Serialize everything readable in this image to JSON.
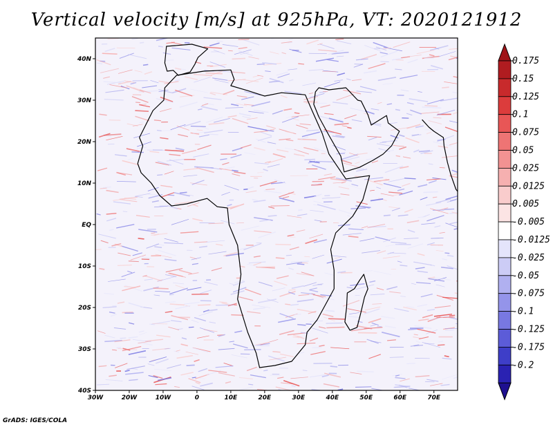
{
  "title": "Vertical velocity [m/s] at 925hPa, VT: 2020121912",
  "credit": "GrADS: IGES/COLA",
  "map": {
    "lon_range": [
      -30,
      77
    ],
    "lat_range": [
      -40,
      45
    ],
    "lon_ticks": [
      {
        "value": -30,
        "label": "30W"
      },
      {
        "value": -20,
        "label": "20W"
      },
      {
        "value": -10,
        "label": "10W"
      },
      {
        "value": 0,
        "label": "0"
      },
      {
        "value": 10,
        "label": "10E"
      },
      {
        "value": 20,
        "label": "20E"
      },
      {
        "value": 30,
        "label": "30E"
      },
      {
        "value": 40,
        "label": "40E"
      },
      {
        "value": 50,
        "label": "50E"
      },
      {
        "value": 60,
        "label": "60E"
      },
      {
        "value": 70,
        "label": "70E"
      }
    ],
    "lat_ticks": [
      {
        "value": 40,
        "label": "40N"
      },
      {
        "value": 30,
        "label": "30N"
      },
      {
        "value": 20,
        "label": "20N"
      },
      {
        "value": 10,
        "label": "10N"
      },
      {
        "value": 0,
        "label": "EQ"
      },
      {
        "value": -10,
        "label": "10S"
      },
      {
        "value": -20,
        "label": "20S"
      },
      {
        "value": -30,
        "label": "30S"
      },
      {
        "value": -40,
        "label": "40S"
      }
    ],
    "africa_outline": [
      [
        -6,
        36
      ],
      [
        2,
        37
      ],
      [
        10,
        37.3
      ],
      [
        11,
        35
      ],
      [
        10,
        33.5
      ],
      [
        15,
        32.3
      ],
      [
        20,
        31
      ],
      [
        25,
        31.8
      ],
      [
        32,
        31.3
      ],
      [
        34,
        27.5
      ],
      [
        37,
        22
      ],
      [
        39,
        17
      ],
      [
        42.5,
        12.8
      ],
      [
        44,
        11
      ],
      [
        51,
        11.8
      ],
      [
        49,
        6
      ],
      [
        46,
        2
      ],
      [
        41,
        -2
      ],
      [
        39.5,
        -6
      ],
      [
        40.5,
        -11
      ],
      [
        40.5,
        -15.5
      ],
      [
        35.5,
        -23
      ],
      [
        32.5,
        -26
      ],
      [
        32,
        -29
      ],
      [
        28,
        -33
      ],
      [
        23,
        -34
      ],
      [
        18.5,
        -34.5
      ],
      [
        17.5,
        -31
      ],
      [
        15,
        -26
      ],
      [
        12,
        -18
      ],
      [
        13,
        -12
      ],
      [
        12,
        -5
      ],
      [
        9.5,
        0
      ],
      [
        9,
        4
      ],
      [
        6,
        4.3
      ],
      [
        3,
        6.3
      ],
      [
        -3,
        5
      ],
      [
        -7.5,
        4.5
      ],
      [
        -11,
        7
      ],
      [
        -13.5,
        10
      ],
      [
        -16.5,
        12.5
      ],
      [
        -17.5,
        14.7
      ],
      [
        -16,
        19
      ],
      [
        -17,
        21
      ],
      [
        -13,
        27.5
      ],
      [
        -9.8,
        30
      ],
      [
        -9.5,
        33
      ],
      [
        -6,
        36
      ]
    ],
    "arabia_outline": [
      [
        34.5,
        29
      ],
      [
        36,
        26
      ],
      [
        39,
        21.5
      ],
      [
        42.5,
        16.5
      ],
      [
        43.5,
        12.7
      ],
      [
        48,
        13.8
      ],
      [
        52,
        15.5
      ],
      [
        55,
        17
      ],
      [
        57.5,
        19
      ],
      [
        59.8,
        22.5
      ],
      [
        56.5,
        24.5
      ],
      [
        56,
        26.3
      ],
      [
        51.5,
        24
      ],
      [
        50.5,
        26.5
      ],
      [
        48.5,
        29.8
      ],
      [
        47.5,
        30
      ],
      [
        44,
        33
      ],
      [
        39,
        32.5
      ],
      [
        36,
        33
      ],
      [
        35,
        32
      ],
      [
        34.5,
        29
      ]
    ],
    "iberia_outline": [
      [
        -9,
        43
      ],
      [
        -1.5,
        43.5
      ],
      [
        3.2,
        42.4
      ],
      [
        0.3,
        40.3
      ],
      [
        -0.6,
        38.7
      ],
      [
        -2,
        36.8
      ],
      [
        -5.5,
        36
      ],
      [
        -7,
        37.2
      ],
      [
        -8.8,
        37
      ],
      [
        -9.5,
        39
      ],
      [
        -9,
        43
      ]
    ],
    "madagascar_outline": [
      [
        49.3,
        -12
      ],
      [
        50.5,
        -15.5
      ],
      [
        49.5,
        -17.5
      ],
      [
        48.5,
        -21
      ],
      [
        47.3,
        -24.8
      ],
      [
        45.2,
        -25.5
      ],
      [
        43.7,
        -23.5
      ],
      [
        44.2,
        -20
      ],
      [
        44.4,
        -16.5
      ],
      [
        46.5,
        -15.5
      ],
      [
        48,
        -13.5
      ],
      [
        49.3,
        -12
      ]
    ],
    "india_outline": [
      [
        66.5,
        25.3
      ],
      [
        68.5,
        23.5
      ],
      [
        70,
        22.5
      ],
      [
        72.8,
        21
      ],
      [
        73,
        19
      ],
      [
        74,
        15
      ],
      [
        75,
        12
      ],
      [
        76.5,
        8.5
      ],
      [
        77,
        8
      ]
    ]
  },
  "colorbar": {
    "entries": [
      {
        "color": "#b01c20",
        "label": "0.175"
      },
      {
        "color": "#c82a2c",
        "label": "0.15"
      },
      {
        "color": "#dc3c3c",
        "label": "0.125"
      },
      {
        "color": "#e85656",
        "label": "0.1"
      },
      {
        "color": "#ee7474",
        "label": "0.075"
      },
      {
        "color": "#f29292",
        "label": "0.05"
      },
      {
        "color": "#f6b0b0",
        "label": "0.025"
      },
      {
        "color": "#f9cccc",
        "label": "0.0125"
      },
      {
        "color": "#fce4e4",
        "label": "0.005"
      },
      {
        "color": "#ffffff",
        "label": "-0.005"
      },
      {
        "color": "#e4e4fb",
        "label": "-0.0125"
      },
      {
        "color": "#ccccf6",
        "label": "-0.025"
      },
      {
        "color": "#b0b0f0",
        "label": "-0.05"
      },
      {
        "color": "#9494ea",
        "label": "-0.075"
      },
      {
        "color": "#7878e2",
        "label": "-0.1"
      },
      {
        "color": "#5c5cd8",
        "label": "-0.125"
      },
      {
        "color": "#3e3ec8",
        "label": "-0.175"
      },
      {
        "color": "#2a22b2",
        "label": "-0.2"
      }
    ],
    "top_cap_color": "#a01418",
    "bottom_cap_color": "#1e1090"
  }
}
